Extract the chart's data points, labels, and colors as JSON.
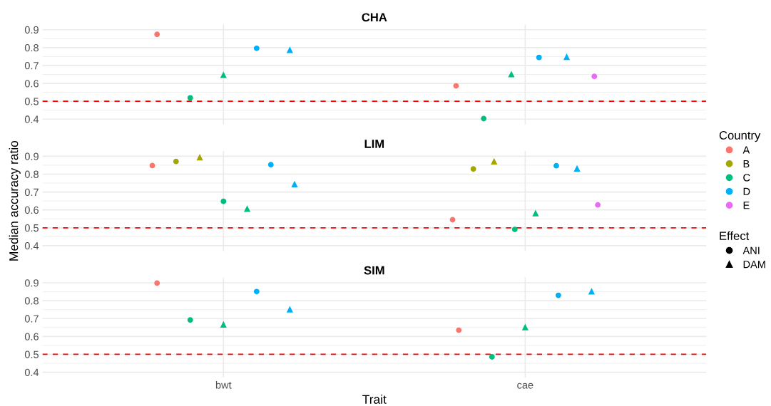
{
  "chart_data": [
    {
      "type": "scatter",
      "title": "CHA",
      "categories": [
        null,
        null
      ],
      "ylim": [
        0.37,
        0.93
      ],
      "yticks": [
        0.4,
        {
          "value": 0.45,
          "label": null
        },
        0.5,
        {
          "value": 0.55,
          "label": null
        },
        0.6,
        {
          "value": 0.65,
          "label": null
        },
        0.7,
        {
          "value": 0.75,
          "label": null
        },
        0.8,
        {
          "value": 0.85,
          "label": null
        },
        0.9
      ],
      "grid": true,
      "ref_lines": [
        {
          "axis": "y",
          "value": 0.5,
          "label": null,
          "color": "#ff0000",
          "line_style": "dashed"
        }
      ],
      "series": [
        {
          "color": "#f8766d",
          "marker": "circle",
          "values": [
            0.874,
            0.586
          ]
        },
        {
          "color": "#00bf7d",
          "marker": "circle",
          "values": [
            0.519,
            0.403
          ]
        },
        {
          "color": "#00bf7d",
          "marker": "triangle",
          "values": [
            0.648,
            0.652
          ]
        },
        {
          "color": "#00b0f6",
          "marker": "circle",
          "values": [
            0.796,
            0.745
          ]
        },
        {
          "color": "#00b0f6",
          "marker": "triangle",
          "values": [
            0.788,
            0.749
          ]
        },
        {
          "color": "#e76bf3",
          "marker": "circle",
          "values": [
            null,
            0.639
          ]
        }
      ]
    },
    {
      "type": "scatter",
      "title": "LIM",
      "ylabel": "Median accuracy ratio",
      "categories": [
        null,
        null
      ],
      "ylim": [
        0.37,
        0.93
      ],
      "yticks": [
        0.4,
        {
          "value": 0.45,
          "label": null
        },
        0.5,
        {
          "value": 0.55,
          "label": null
        },
        0.6,
        {
          "value": 0.65,
          "label": null
        },
        0.7,
        {
          "value": 0.75,
          "label": null
        },
        0.8,
        {
          "value": 0.85,
          "label": null
        },
        0.9
      ],
      "grid": true,
      "legend": "right",
      "legend_title": "Country",
      "ref_lines": [
        {
          "axis": "y",
          "value": 0.5,
          "label": null,
          "color": "#ff0000",
          "line_style": "dashed"
        }
      ],
      "series": [
        {
          "name": "A",
          "color": "#f8766d",
          "marker": "circle",
          "values": [
            0.848,
            0.545
          ]
        },
        {
          "name": "B",
          "color": "#a3a500",
          "marker": "circle",
          "values": [
            0.871,
            0.829
          ]
        },
        {
          "color": "#a3a500",
          "marker": "triangle",
          "values": [
            0.895,
            0.872
          ]
        },
        {
          "name": "C",
          "color": "#00bf7d",
          "marker": "circle",
          "values": [
            0.648,
            0.491
          ]
        },
        {
          "color": "#00bf7d",
          "marker": "triangle",
          "values": [
            0.607,
            0.582
          ]
        },
        {
          "name": "D",
          "color": "#00b0f6",
          "marker": "circle",
          "values": [
            0.853,
            0.847
          ]
        },
        {
          "color": "#00b0f6",
          "marker": "triangle",
          "values": [
            0.745,
            0.832
          ]
        },
        {
          "name": "E",
          "color": "#e76bf3",
          "marker": "circle",
          "values": [
            null,
            0.628
          ]
        }
      ]
    },
    {
      "type": "scatter",
      "title": "SIM",
      "xlabel": "Trait",
      "categories": [
        "bwt",
        "cae"
      ],
      "ylim": [
        0.37,
        0.93
      ],
      "yticks": [
        0.4,
        {
          "value": 0.45,
          "label": null
        },
        0.5,
        {
          "value": 0.55,
          "label": null
        },
        0.6,
        {
          "value": 0.65,
          "label": null
        },
        0.7,
        {
          "value": 0.75,
          "label": null
        },
        0.8,
        {
          "value": 0.85,
          "label": null
        },
        0.9
      ],
      "grid": true,
      "legend": "top right",
      "legend_title": "Effect",
      "ref_lines": [
        {
          "axis": "y",
          "value": 0.5,
          "label": null,
          "color": "#ff0000",
          "line_style": "dashed"
        }
      ],
      "series": [
        {
          "color": "#f8766d",
          "marker": "circle",
          "values": [
            0.898,
            0.635
          ]
        },
        {
          "color": "#00bf7d",
          "marker": "circle",
          "values": [
            0.692,
            0.486
          ]
        },
        {
          "color": "#00bf7d",
          "marker": "triangle",
          "values": [
            0.668,
            0.653
          ]
        },
        {
          "color": "#00b0f6",
          "marker": "circle",
          "values": [
            0.851,
            0.83
          ]
        },
        {
          "color": "#00b0f6",
          "marker": "triangle",
          "values": [
            0.752,
            0.853
          ]
        },
        {
          "name": "ANI",
          "color": "#000000",
          "marker": "circle",
          "values": [
            null,
            null
          ]
        },
        {
          "name": "DAM",
          "color": "#000000",
          "marker": "triangle",
          "values": [
            null,
            null
          ]
        }
      ]
    }
  ]
}
